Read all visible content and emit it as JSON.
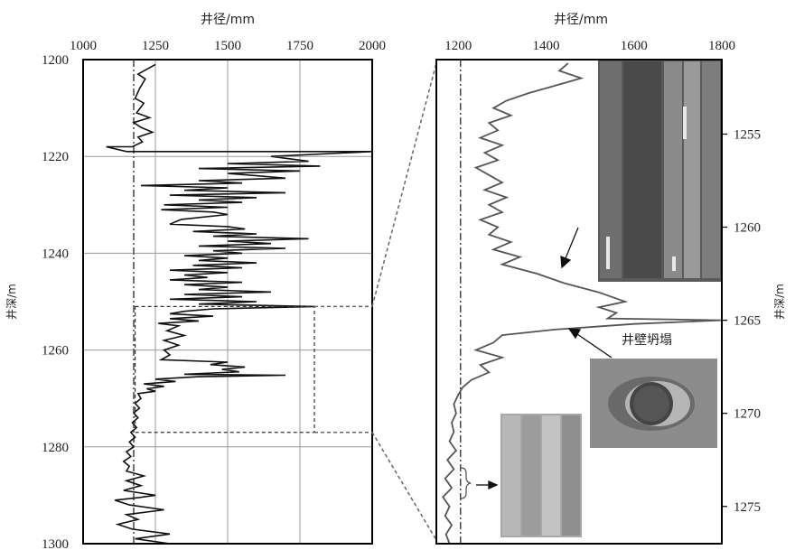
{
  "chart_data": [
    {
      "type": "line",
      "panel": "left",
      "xlabel": "井径/mm",
      "ylabel": "井深/m",
      "xlim": [
        1000,
        2000
      ],
      "ylim": [
        1200,
        1300
      ],
      "y_inverted": true,
      "x_axis_position": "top",
      "x_ticks": [
        "1000",
        "1250",
        "1500",
        "1750",
        "2000"
      ],
      "y_ticks": [
        "1200",
        "1220",
        "1240",
        "1260",
        "1280",
        "1300"
      ],
      "grid": true,
      "bit_size_line_x": 1175,
      "series": [
        {
          "points": [
            [
              1250,
              1201
            ],
            [
              1190,
              1203
            ],
            [
              1215,
              1204
            ],
            [
              1195,
              1206
            ],
            [
              1180,
              1208
            ],
            [
              1210,
              1209
            ],
            [
              1185,
              1211
            ],
            [
              1230,
              1212
            ],
            [
              1175,
              1213
            ],
            [
              1200,
              1214
            ],
            [
              1240,
              1215
            ],
            [
              1190,
              1216
            ],
            [
              1205,
              1217
            ],
            [
              1170,
              1218
            ],
            [
              1080,
              1218
            ],
            [
              1150,
              1219
            ],
            [
              1400,
              1219
            ],
            [
              1750,
              1219
            ],
            [
              2000,
              1219
            ],
            [
              1650,
              1220
            ],
            [
              1780,
              1221
            ],
            [
              1500,
              1221.5
            ],
            [
              1820,
              1222
            ],
            [
              1400,
              1222.5
            ],
            [
              1750,
              1223
            ],
            [
              1500,
              1223.5
            ],
            [
              1600,
              1224
            ],
            [
              1700,
              1224.5
            ],
            [
              1400,
              1225
            ],
            [
              1550,
              1225.5
            ],
            [
              1200,
              1226
            ],
            [
              1500,
              1226.5
            ],
            [
              1350,
              1227
            ],
            [
              1700,
              1227.5
            ],
            [
              1300,
              1228
            ],
            [
              1600,
              1228.5
            ],
            [
              1400,
              1229
            ],
            [
              1550,
              1229.5
            ],
            [
              1280,
              1230
            ],
            [
              1500,
              1230.5
            ],
            [
              1270,
              1231
            ],
            [
              1450,
              1231.5
            ],
            [
              1500,
              1232
            ],
            [
              1340,
              1233
            ],
            [
              1300,
              1234
            ],
            [
              1500,
              1234.5
            ],
            [
              1560,
              1235
            ],
            [
              1380,
              1235.5
            ],
            [
              1600,
              1236
            ],
            [
              1450,
              1236.5
            ],
            [
              1780,
              1237
            ],
            [
              1500,
              1237.5
            ],
            [
              1650,
              1238
            ],
            [
              1400,
              1238.5
            ],
            [
              1700,
              1239
            ],
            [
              1450,
              1239.5
            ],
            [
              1550,
              1240
            ],
            [
              1350,
              1240.5
            ],
            [
              1500,
              1241
            ],
            [
              1400,
              1241.5
            ],
            [
              1600,
              1242
            ],
            [
              1380,
              1242.5
            ],
            [
              1550,
              1243
            ],
            [
              1300,
              1243.5
            ],
            [
              1500,
              1244
            ],
            [
              1350,
              1244.5
            ],
            [
              1430,
              1245
            ],
            [
              1300,
              1245.5
            ],
            [
              1550,
              1246
            ],
            [
              1350,
              1246.5
            ],
            [
              1500,
              1247
            ],
            [
              1400,
              1247.5
            ],
            [
              1650,
              1248
            ],
            [
              1350,
              1248.5
            ],
            [
              1550,
              1249
            ],
            [
              1300,
              1249.5
            ],
            [
              1600,
              1250
            ],
            [
              1400,
              1250.5
            ],
            [
              1800,
              1251
            ],
            [
              1450,
              1251.5
            ],
            [
              1350,
              1252
            ],
            [
              1300,
              1252.5
            ],
            [
              1450,
              1253
            ],
            [
              1300,
              1253.5
            ],
            [
              1400,
              1254
            ],
            [
              1260,
              1254.5
            ],
            [
              1330,
              1255
            ],
            [
              1290,
              1256
            ],
            [
              1350,
              1257
            ],
            [
              1280,
              1258
            ],
            [
              1330,
              1259
            ],
            [
              1280,
              1260
            ],
            [
              1300,
              1261
            ],
            [
              1270,
              1262
            ],
            [
              1500,
              1262.5
            ],
            [
              1440,
              1263
            ],
            [
              1560,
              1263.5
            ],
            [
              1480,
              1264
            ],
            [
              1540,
              1264.5
            ],
            [
              1350,
              1265
            ],
            [
              1700,
              1265.2
            ],
            [
              1400,
              1265.5
            ],
            [
              1250,
              1266
            ],
            [
              1320,
              1266.5
            ],
            [
              1210,
              1267
            ],
            [
              1280,
              1267.5
            ],
            [
              1220,
              1268
            ],
            [
              1250,
              1268.5
            ],
            [
              1190,
              1269
            ],
            [
              1200,
              1270
            ],
            [
              1180,
              1271
            ],
            [
              1195,
              1272
            ],
            [
              1175,
              1273
            ],
            [
              1190,
              1274
            ],
            [
              1170,
              1275
            ],
            [
              1185,
              1276
            ],
            [
              1165,
              1277
            ],
            [
              1180,
              1278
            ],
            [
              1160,
              1279
            ],
            [
              1175,
              1280
            ],
            [
              1150,
              1281
            ],
            [
              1165,
              1282
            ],
            [
              1140,
              1283
            ],
            [
              1160,
              1284
            ],
            [
              1150,
              1285
            ],
            [
              1210,
              1286
            ],
            [
              1150,
              1287
            ],
            [
              1200,
              1288
            ],
            [
              1140,
              1289
            ],
            [
              1250,
              1290
            ],
            [
              1190,
              1290.5
            ],
            [
              1110,
              1291
            ],
            [
              1160,
              1292
            ],
            [
              1280,
              1293
            ],
            [
              1150,
              1294
            ],
            [
              1190,
              1295
            ],
            [
              1120,
              1296
            ],
            [
              1170,
              1297
            ],
            [
              1300,
              1298
            ],
            [
              1180,
              1299
            ],
            [
              1300,
              1300
            ]
          ]
        }
      ],
      "highlight_box": {
        "x_range": [
          1180,
          1800
        ],
        "y_range": [
          1251,
          1277
        ]
      }
    },
    {
      "type": "line",
      "panel": "right",
      "xlabel": "井径/mm",
      "ylabel": "井深/m",
      "xlim": [
        1150,
        1800
      ],
      "ylim": [
        1251,
        1277
      ],
      "y_inverted": true,
      "x_axis_position": "top",
      "x_ticks": [
        "1200",
        "1400",
        "1600",
        "1800"
      ],
      "y_ticks": [
        "1255",
        "1260",
        "1265",
        "1270",
        "1275"
      ],
      "y_axis_position": "right",
      "grid": false,
      "bit_size_line_x": 1205,
      "series": [
        {
          "points": [
            [
              1450,
              1251.2
            ],
            [
              1430,
              1251.6
            ],
            [
              1480,
              1252
            ],
            [
              1420,
              1252.4
            ],
            [
              1360,
              1252.8
            ],
            [
              1310,
              1253.2
            ],
            [
              1280,
              1253.6
            ],
            [
              1320,
              1254
            ],
            [
              1270,
              1254.4
            ],
            [
              1290,
              1254.8
            ],
            [
              1250,
              1255.2
            ],
            [
              1300,
              1255.6
            ],
            [
              1260,
              1256
            ],
            [
              1290,
              1256.4
            ],
            [
              1240,
              1256.8
            ],
            [
              1270,
              1257.2
            ],
            [
              1300,
              1257.6
            ],
            [
              1260,
              1258
            ],
            [
              1310,
              1258.4
            ],
            [
              1270,
              1258.8
            ],
            [
              1300,
              1259.2
            ],
            [
              1250,
              1259.6
            ],
            [
              1290,
              1260
            ],
            [
              1270,
              1260.4
            ],
            [
              1320,
              1260.8
            ],
            [
              1280,
              1261.2
            ],
            [
              1340,
              1261.6
            ],
            [
              1300,
              1262
            ],
            [
              1380,
              1262.5
            ],
            [
              1440,
              1263
            ],
            [
              1520,
              1263.5
            ],
            [
              1580,
              1264
            ],
            [
              1520,
              1264.3
            ],
            [
              1560,
              1264.6
            ],
            [
              1540,
              1264.9
            ],
            [
              1800,
              1265
            ],
            [
              1600,
              1265.2
            ],
            [
              1420,
              1265.5
            ],
            [
              1300,
              1265.8
            ],
            [
              1280,
              1266.2
            ],
            [
              1240,
              1266.6
            ],
            [
              1300,
              1267
            ],
            [
              1250,
              1267.4
            ],
            [
              1270,
              1267.8
            ],
            [
              1230,
              1268.2
            ],
            [
              1210,
              1268.6
            ],
            [
              1200,
              1269
            ],
            [
              1190,
              1269.5
            ],
            [
              1195,
              1270
            ],
            [
              1185,
              1270.5
            ],
            [
              1190,
              1271
            ],
            [
              1180,
              1271.5
            ],
            [
              1195,
              1272
            ],
            [
              1175,
              1272.5
            ],
            [
              1190,
              1273
            ],
            [
              1170,
              1273.5
            ],
            [
              1185,
              1274
            ],
            [
              1165,
              1274.5
            ],
            [
              1180,
              1275
            ],
            [
              1170,
              1275.5
            ],
            [
              1185,
              1276
            ],
            [
              1172,
              1276.5
            ],
            [
              1180,
              1277
            ]
          ]
        }
      ],
      "annotations": [
        {
          "text": "井壁坍塌"
        }
      ]
    }
  ],
  "images": {
    "core_photo_top": "core-sample-photo",
    "borehole_collapse_photo": "borehole-collapse-photo",
    "core_photo_bottom": "core-sample-photo"
  },
  "colors": {
    "curve_left": "#111111",
    "curve_right": "#555555",
    "frame": "#000000",
    "grid": "#999999",
    "bit_line": "#444444"
  }
}
